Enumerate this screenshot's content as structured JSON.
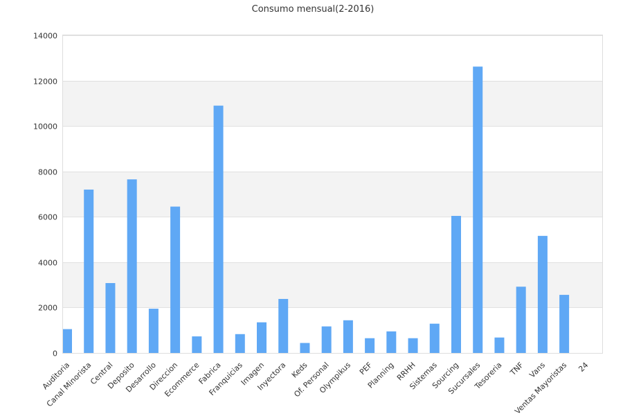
{
  "chart_data": {
    "type": "bar",
    "title": "Consumo mensual(2-2016)",
    "xlabel": "",
    "ylabel": "",
    "ylim": [
      0,
      14000
    ],
    "yticks": [
      0,
      2000,
      4000,
      6000,
      8000,
      10000,
      12000,
      14000
    ],
    "grid": true,
    "legend": "none",
    "bar_color": "#5fa8f5",
    "band_color": "#f3f3f3",
    "categories": [
      "Auditoria",
      "Canal Minorista",
      "Central",
      "Deposito",
      "Desarrollo",
      "Direccion",
      "Ecommerce",
      "Fabrica",
      "Franquicias",
      "Imagen",
      "Inyectora",
      "Keds",
      "Of. Personal",
      "Olympikus",
      "PEF",
      "Planning",
      "RRHH",
      "Sistemas",
      "Sourcing",
      "Sucursales",
      "Tesoreria",
      "TNF",
      "Vans",
      "Ventas Mayoristas",
      "24"
    ],
    "values": [
      1050,
      7200,
      3080,
      7650,
      1950,
      6450,
      730,
      10900,
      830,
      1350,
      2380,
      440,
      1170,
      1440,
      650,
      950,
      650,
      1290,
      6040,
      12620,
      680,
      2920,
      5160,
      2560,
      null
    ]
  }
}
